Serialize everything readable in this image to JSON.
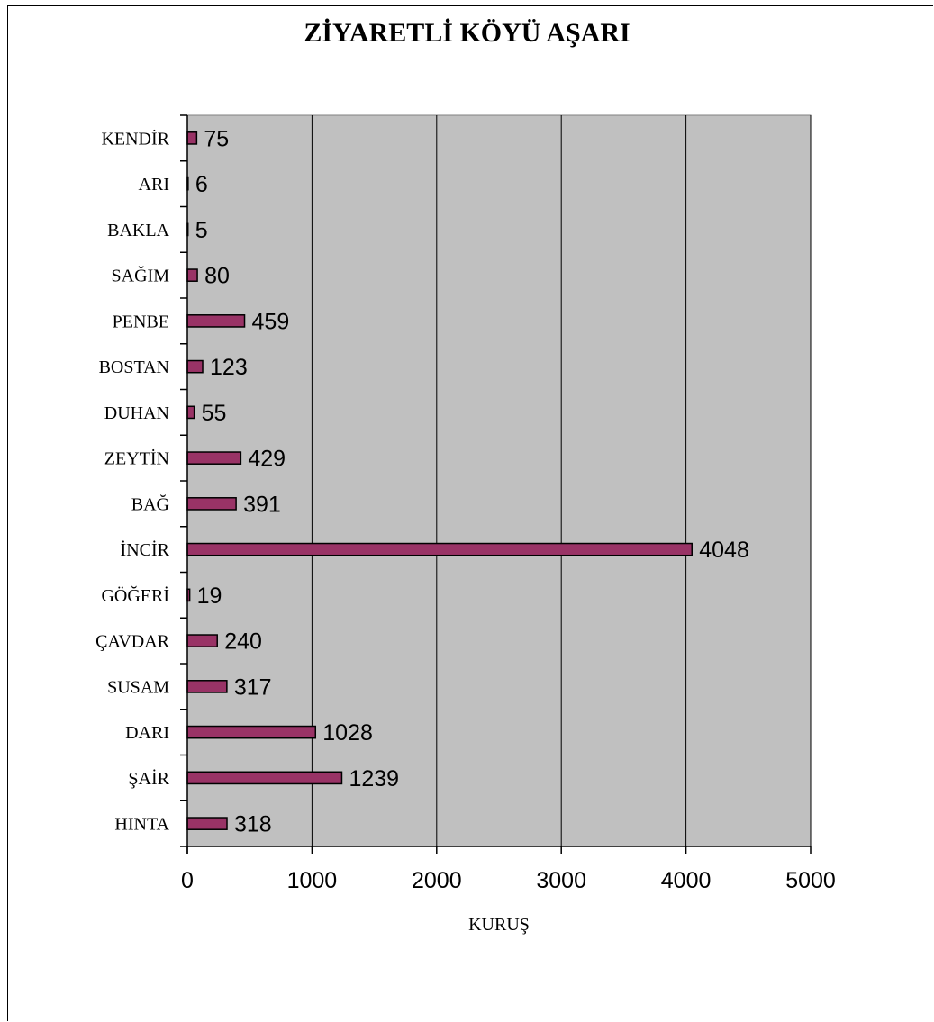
{
  "chart_data": {
    "type": "bar",
    "orientation": "horizontal",
    "title": "ZİYARETLİ KÖYÜ AŞARI",
    "xlabel": "KURUŞ",
    "ylabel": "",
    "categories": [
      "HINTA",
      "ŞAİR",
      "DARI",
      "SUSAM",
      "ÇAVDAR",
      "GÖĞERİ",
      "İNCİR",
      "BAĞ",
      "ZEYTİN",
      "DUHAN",
      "BOSTAN",
      "PENBE",
      "SAĞIM",
      "BAKLA",
      "ARI",
      "KENDİR"
    ],
    "values": [
      318,
      1239,
      1028,
      317,
      240,
      19,
      4048,
      391,
      429,
      55,
      123,
      459,
      80,
      5,
      6,
      75
    ],
    "xlim": [
      0,
      5000
    ],
    "xticks": [
      0,
      1000,
      2000,
      3000,
      4000,
      5000
    ],
    "grid": "vertical",
    "legend": "none",
    "data_labels": true,
    "colors": {
      "bar_fill": "#993366",
      "bar_stroke": "#000000",
      "plot_background": "#c0c0c0"
    }
  }
}
